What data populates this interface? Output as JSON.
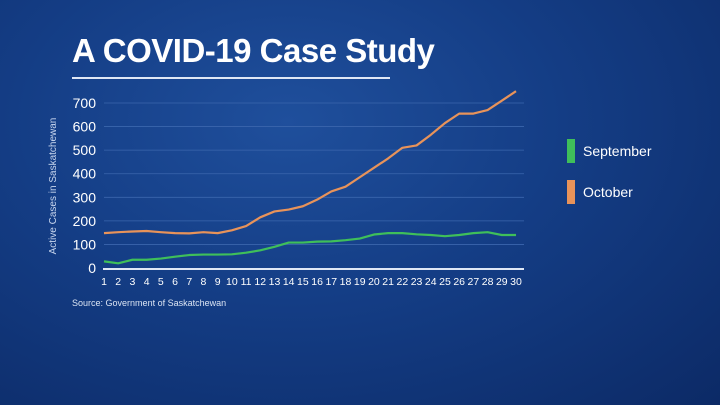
{
  "chart_data": {
    "type": "line",
    "title": "A COVID-19 Case Study",
    "ylabel": "Active Cases in Saskatchewan",
    "xlabel": "",
    "ylim": [
      0,
      750
    ],
    "yticks": [
      0,
      100,
      200,
      300,
      400,
      500,
      600,
      700
    ],
    "x": [
      1,
      2,
      3,
      4,
      5,
      6,
      7,
      8,
      9,
      10,
      11,
      12,
      13,
      14,
      15,
      16,
      17,
      18,
      19,
      20,
      21,
      22,
      23,
      24,
      25,
      26,
      27,
      28,
      29,
      30
    ],
    "grid": true,
    "legend_position": "right",
    "series": [
      {
        "name": "September",
        "color": "#3fbf5a",
        "values": [
          28,
          20,
          35,
          35,
          40,
          48,
          55,
          57,
          57,
          58,
          65,
          75,
          90,
          108,
          108,
          112,
          113,
          118,
          125,
          142,
          148,
          148,
          143,
          140,
          135,
          140,
          148,
          152,
          140,
          140
        ]
      },
      {
        "name": "October",
        "color": "#e8935a",
        "values": [
          148,
          152,
          155,
          157,
          152,
          148,
          147,
          152,
          148,
          160,
          178,
          215,
          240,
          248,
          262,
          290,
          325,
          345,
          385,
          425,
          465,
          510,
          520,
          565,
          615,
          655,
          655,
          670,
          710,
          750
        ]
      }
    ]
  },
  "source": {
    "label": "Source:",
    "value": "Government of Saskatchewan"
  }
}
